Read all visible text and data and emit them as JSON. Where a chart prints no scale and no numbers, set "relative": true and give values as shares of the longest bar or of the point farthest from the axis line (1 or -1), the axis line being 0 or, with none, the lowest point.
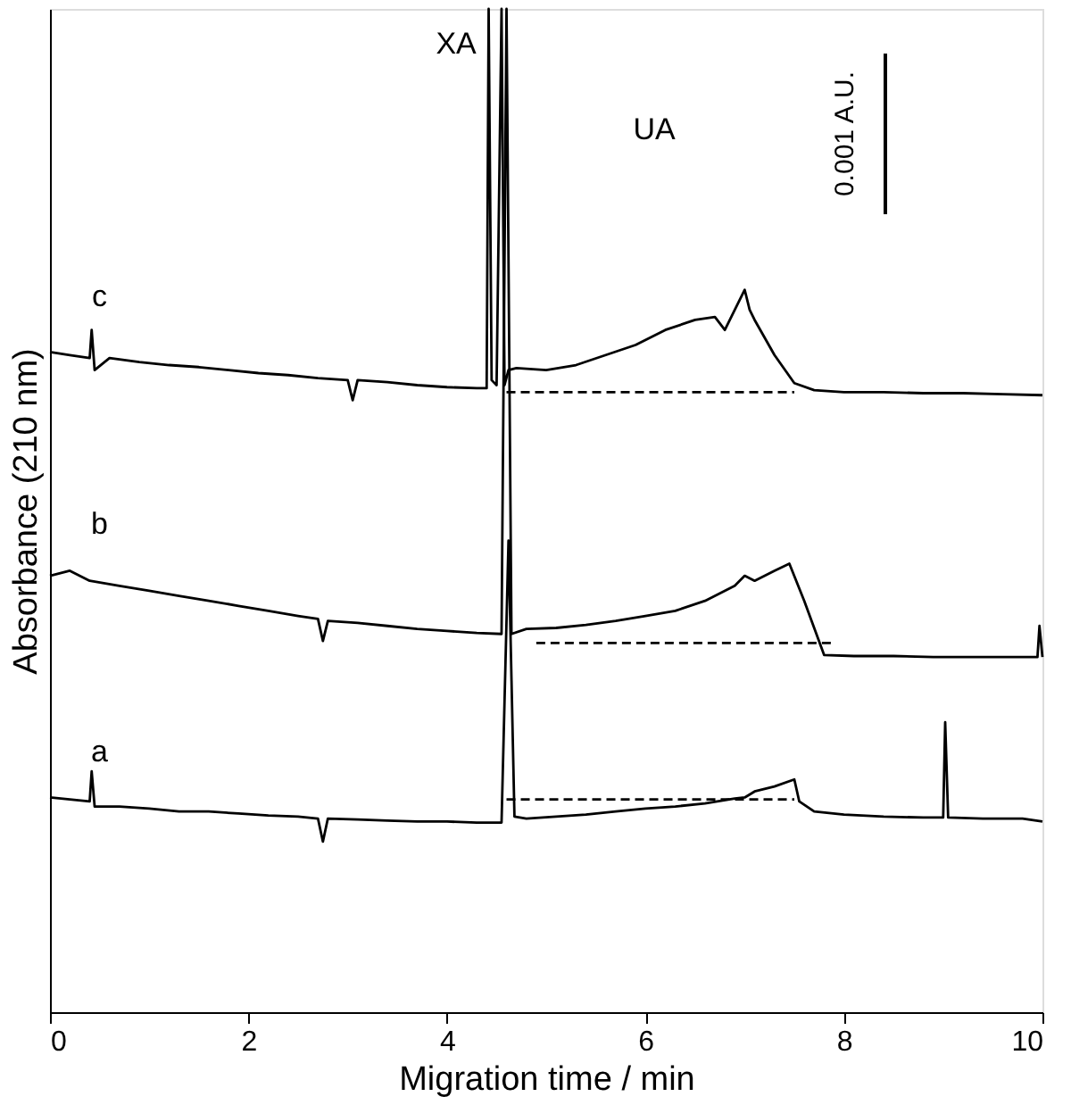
{
  "chart_data": {
    "type": "line",
    "relative": true,
    "xlabel": "Migration time / min",
    "ylabel": "Absorbance (210 nm)",
    "xlim": [
      0,
      10
    ],
    "xticks": [
      0,
      2,
      4,
      6,
      8,
      10
    ],
    "grid": false,
    "marker": "none",
    "line_style": "solid",
    "series": [
      {
        "color": "#000000",
        "x": [
          0,
          0.2,
          0.4,
          0.42,
          0.45,
          0.6,
          0.9,
          1.2,
          1.5,
          1.8,
          2.1,
          2.4,
          2.7,
          3.0,
          3.05,
          3.1,
          3.4,
          3.7,
          4.0,
          4.3,
          4.4,
          4.42,
          4.45,
          4.5,
          4.55,
          4.58,
          4.62,
          4.7,
          5.0,
          5.3,
          5.6,
          5.9,
          6.2,
          6.5,
          6.7,
          6.8,
          6.9,
          7.0,
          7.05,
          7.1,
          7.3,
          7.5,
          7.7,
          8.0,
          8.4,
          8.8,
          9.2,
          9.6,
          10
        ],
        "values": [
          0.658,
          0.655,
          0.652,
          0.68,
          0.64,
          0.652,
          0.648,
          0.645,
          0.643,
          0.64,
          0.637,
          0.635,
          0.632,
          0.63,
          0.61,
          0.63,
          0.628,
          0.625,
          0.623,
          0.622,
          0.622,
          1,
          0.63,
          0.625,
          1,
          0.625,
          0.64,
          0.642,
          0.64,
          0.645,
          0.655,
          0.665,
          0.68,
          0.69,
          0.693,
          0.68,
          0.7,
          0.72,
          0.7,
          0.69,
          0.655,
          0.627,
          0.62,
          0.618,
          0.618,
          0.617,
          0.617,
          0.616,
          0.615
        ]
      },
      {
        "color": "#000000",
        "x": [
          0,
          0.2,
          0.4,
          0.7,
          1.0,
          1.3,
          1.6,
          1.9,
          2.2,
          2.5,
          2.7,
          2.75,
          2.8,
          3.1,
          3.4,
          3.7,
          4.0,
          4.3,
          4.55,
          4.6,
          4.65,
          4.8,
          5.1,
          5.4,
          5.7,
          6.0,
          6.3,
          6.6,
          6.9,
          7.0,
          7.1,
          7.3,
          7.45,
          7.6,
          7.8,
          8.1,
          8.5,
          8.9,
          9.3,
          9.7,
          9.95,
          9.97,
          10
        ],
        "values": [
          0.435,
          0.44,
          0.43,
          0.425,
          0.42,
          0.415,
          0.41,
          0.405,
          0.4,
          0.395,
          0.392,
          0.37,
          0.39,
          0.388,
          0.385,
          0.382,
          0.38,
          0.378,
          0.377,
          1,
          0.377,
          0.382,
          0.383,
          0.386,
          0.39,
          0.395,
          0.4,
          0.41,
          0.425,
          0.435,
          0.43,
          0.44,
          0.447,
          0.41,
          0.356,
          0.355,
          0.355,
          0.354,
          0.354,
          0.354,
          0.354,
          0.385,
          0.354
        ]
      },
      {
        "color": "#000000",
        "x": [
          0,
          0.2,
          0.4,
          0.42,
          0.45,
          0.7,
          1.0,
          1.3,
          1.6,
          1.9,
          2.2,
          2.5,
          2.7,
          2.75,
          2.8,
          3.1,
          3.4,
          3.7,
          4.0,
          4.3,
          4.55,
          4.62,
          4.68,
          4.8,
          5.1,
          5.4,
          5.7,
          6.0,
          6.3,
          6.6,
          6.9,
          7.0,
          7.1,
          7.3,
          7.5,
          7.55,
          7.7,
          8.0,
          8.4,
          8.8,
          9.0,
          9.02,
          9.05,
          9.4,
          9.8,
          10
        ],
        "values": [
          0.214,
          0.212,
          0.21,
          0.24,
          0.205,
          0.205,
          0.203,
          0.2,
          0.2,
          0.198,
          0.196,
          0.195,
          0.193,
          0.17,
          0.193,
          0.192,
          0.191,
          0.19,
          0.19,
          0.189,
          0.189,
          0.47,
          0.195,
          0.193,
          0.195,
          0.197,
          0.2,
          0.203,
          0.205,
          0.208,
          0.213,
          0.214,
          0.22,
          0.225,
          0.232,
          0.21,
          0.2,
          0.197,
          0.195,
          0.194,
          0.194,
          0.289,
          0.194,
          0.193,
          0.193,
          0.19
        ]
      },
      {
        "color": "#000000",
        "line_style": "dashed",
        "x": [
          4.6,
          7.5
        ],
        "values": [
          0.618,
          0.618
        ]
      },
      {
        "color": "#000000",
        "line_style": "dashed",
        "x": [
          4.9,
          7.9
        ],
        "values": [
          0.368,
          0.368
        ]
      },
      {
        "color": "#000000",
        "line_style": "dashed",
        "x": [
          4.6,
          7.5
        ],
        "values": [
          0.212,
          0.212
        ]
      }
    ],
    "annotations": [
      "XA",
      "UA",
      "c",
      "b",
      "a",
      "0.001 A.U."
    ]
  }
}
